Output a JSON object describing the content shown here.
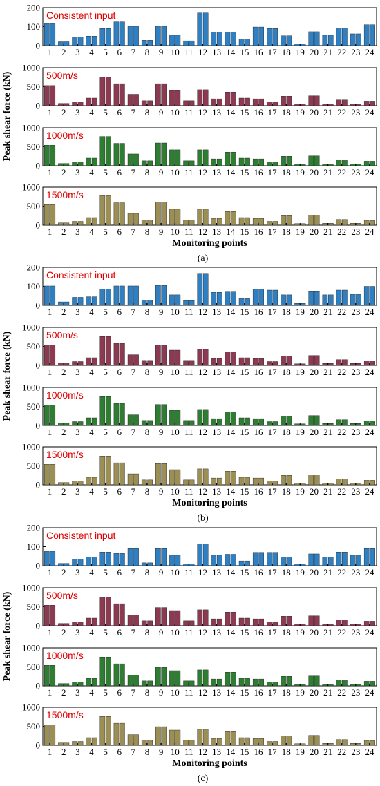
{
  "figure": {
    "x_label": "Monitoring points",
    "y_label": "Peak shear force (kN)",
    "categories": [
      "1",
      "2",
      "3",
      "4",
      "5",
      "6",
      "7",
      "8",
      "9",
      "10",
      "11",
      "12",
      "13",
      "14",
      "15",
      "16",
      "17",
      "18",
      "19",
      "20",
      "21",
      "22",
      "23",
      "24"
    ],
    "colors": {
      "consistent": "#2f7fc1",
      "v500": "#8b3a52",
      "v1000": "#2f7d32",
      "v1500": "#9b8f55"
    }
  },
  "chart_data": [
    {
      "type": "bar",
      "tag": "(a)",
      "panel_label": "Consistent input",
      "ylim": [
        0,
        200
      ],
      "yticks": [
        0,
        100,
        200
      ],
      "series": [
        {
          "values": [
            115,
            20,
            45,
            50,
            90,
            125,
            102,
            28,
            102,
            55,
            25,
            172,
            70,
            72,
            35,
            98,
            90,
            52,
            10,
            73,
            55,
            92,
            62,
            110
          ]
        }
      ]
    },
    {
      "type": "bar",
      "tag": "(a)",
      "panel_label": "500m/s",
      "ylim": [
        0,
        1000
      ],
      "yticks": [
        0,
        500,
        1000
      ],
      "series": [
        {
          "values": [
            530,
            60,
            100,
            200,
            760,
            580,
            300,
            130,
            580,
            400,
            130,
            420,
            180,
            360,
            200,
            180,
            100,
            250,
            40,
            260,
            50,
            150,
            50,
            120
          ]
        }
      ]
    },
    {
      "type": "bar",
      "tag": "(a)",
      "panel_label": "1000m/s",
      "ylim": [
        0,
        1000
      ],
      "yticks": [
        0,
        500,
        1000
      ],
      "series": [
        {
          "values": [
            540,
            60,
            100,
            200,
            770,
            590,
            310,
            130,
            600,
            420,
            130,
            420,
            180,
            360,
            200,
            180,
            100,
            250,
            40,
            260,
            50,
            150,
            50,
            120
          ]
        }
      ]
    },
    {
      "type": "bar",
      "tag": "(a)",
      "panel_label": "1500m/s",
      "ylim": [
        0,
        1000
      ],
      "yticks": [
        0,
        500,
        1000
      ],
      "series": [
        {
          "values": [
            540,
            60,
            100,
            200,
            780,
            590,
            310,
            130,
            610,
            420,
            130,
            420,
            180,
            360,
            200,
            180,
            100,
            250,
            40,
            260,
            50,
            150,
            50,
            120
          ]
        }
      ]
    },
    {
      "type": "bar",
      "tag": "(b)",
      "panel_label": "Consistent input",
      "ylim": [
        0,
        200
      ],
      "yticks": [
        0,
        100,
        200
      ],
      "series": [
        {
          "values": [
            102,
            18,
            42,
            45,
            85,
            102,
            102,
            28,
            105,
            55,
            25,
            168,
            68,
            70,
            35,
            85,
            80,
            55,
            10,
            72,
            55,
            80,
            58,
            100
          ]
        }
      ]
    },
    {
      "type": "bar",
      "tag": "(b)",
      "panel_label": "500m/s",
      "ylim": [
        0,
        1000
      ],
      "yticks": [
        0,
        500,
        1000
      ],
      "series": [
        {
          "values": [
            540,
            60,
            100,
            200,
            760,
            580,
            280,
            130,
            530,
            400,
            130,
            420,
            180,
            360,
            200,
            180,
            100,
            250,
            40,
            260,
            50,
            150,
            50,
            120
          ]
        }
      ]
    },
    {
      "type": "bar",
      "tag": "(b)",
      "panel_label": "1000m/s",
      "ylim": [
        0,
        1000
      ],
      "yticks": [
        0,
        500,
        1000
      ],
      "series": [
        {
          "values": [
            540,
            60,
            100,
            200,
            760,
            580,
            280,
            130,
            550,
            400,
            130,
            420,
            180,
            360,
            200,
            180,
            100,
            250,
            40,
            260,
            50,
            150,
            50,
            120
          ]
        }
      ]
    },
    {
      "type": "bar",
      "tag": "(b)",
      "panel_label": "1500m/s",
      "ylim": [
        0,
        1000
      ],
      "yticks": [
        0,
        500,
        1000
      ],
      "series": [
        {
          "values": [
            540,
            60,
            100,
            200,
            760,
            580,
            290,
            130,
            560,
            400,
            130,
            420,
            180,
            360,
            200,
            180,
            100,
            250,
            40,
            260,
            50,
            150,
            50,
            120
          ]
        }
      ]
    },
    {
      "type": "bar",
      "tag": "(c)",
      "panel_label": "Consistent input",
      "ylim": [
        0,
        200
      ],
      "yticks": [
        0,
        100,
        200
      ],
      "series": [
        {
          "values": [
            75,
            12,
            35,
            45,
            72,
            65,
            90,
            15,
            90,
            55,
            10,
            115,
            55,
            60,
            25,
            70,
            70,
            45,
            8,
            62,
            45,
            72,
            55,
            90
          ]
        }
      ]
    },
    {
      "type": "bar",
      "tag": "(c)",
      "panel_label": "500m/s",
      "ylim": [
        0,
        1000
      ],
      "yticks": [
        0,
        500,
        1000
      ],
      "series": [
        {
          "values": [
            540,
            60,
            100,
            200,
            760,
            580,
            280,
            130,
            480,
            400,
            130,
            420,
            180,
            360,
            200,
            180,
            100,
            250,
            40,
            260,
            50,
            150,
            50,
            120
          ]
        }
      ]
    },
    {
      "type": "bar",
      "tag": "(c)",
      "panel_label": "1000m/s",
      "ylim": [
        0,
        1000
      ],
      "yticks": [
        0,
        500,
        1000
      ],
      "series": [
        {
          "values": [
            540,
            60,
            100,
            200,
            760,
            580,
            280,
            130,
            490,
            400,
            130,
            420,
            180,
            360,
            200,
            180,
            100,
            250,
            40,
            260,
            50,
            150,
            50,
            120
          ]
        }
      ]
    },
    {
      "type": "bar",
      "tag": "(c)",
      "panel_label": "1500m/s",
      "ylim": [
        0,
        1000
      ],
      "yticks": [
        0,
        500,
        1000
      ],
      "series": [
        {
          "values": [
            540,
            60,
            100,
            200,
            760,
            580,
            280,
            130,
            490,
            400,
            130,
            420,
            180,
            360,
            200,
            180,
            100,
            250,
            40,
            260,
            50,
            150,
            50,
            120
          ]
        }
      ]
    }
  ]
}
